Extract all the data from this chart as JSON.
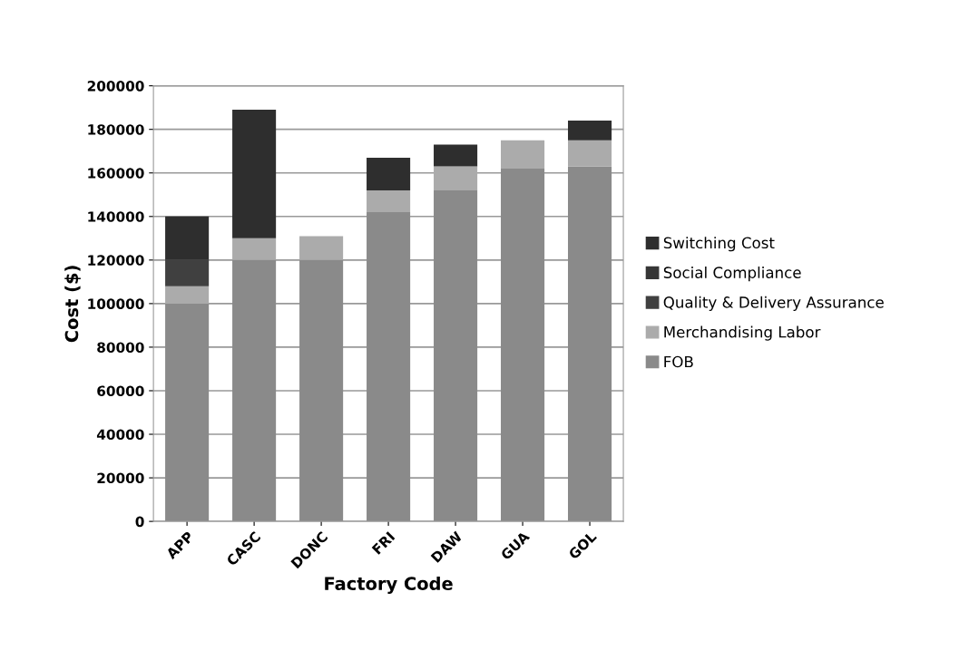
{
  "chart_data": {
    "type": "bar",
    "stacked": true,
    "xlabel": "Factory Code",
    "ylabel": "Cost ($)",
    "categories": [
      "APP",
      "CASC",
      "DONC",
      "FRI",
      "DAW",
      "GUA",
      "GOL"
    ],
    "series": [
      {
        "name": "FOB",
        "color": "#8a8a8a",
        "values": [
          100000,
          120000,
          120000,
          142000,
          152000,
          162000,
          163000
        ]
      },
      {
        "name": "Merchandising Labor",
        "color": "#ababab",
        "values": [
          8000,
          10000,
          11000,
          10000,
          11000,
          13000,
          12000
        ]
      },
      {
        "name": "Quality & Delivery Assurance",
        "color": "#404040",
        "values": [
          12000,
          0,
          0,
          0,
          0,
          0,
          0
        ]
      },
      {
        "name": "Social Compliance",
        "color": "#363636",
        "values": [
          0,
          0,
          0,
          0,
          0,
          0,
          0
        ]
      },
      {
        "name": "Switching Cost",
        "color": "#2e2e2e",
        "values": [
          20000,
          59000,
          0,
          15000,
          10000,
          0,
          9000
        ]
      }
    ],
    "ylim": [
      0,
      200000
    ],
    "yticks": [
      0,
      20000,
      40000,
      60000,
      80000,
      100000,
      120000,
      140000,
      160000,
      180000,
      200000
    ],
    "grid": "y",
    "legend": "right"
  }
}
